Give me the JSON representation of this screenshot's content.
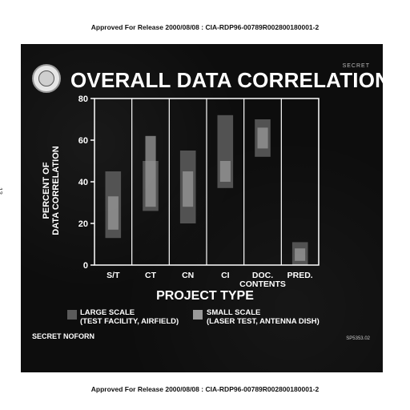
{
  "document": {
    "header": "Approved For Release 2000/08/08 : CIA-RDP96-00789R002800180001-2",
    "footer": "Approved For Release 2000/08/08 : CIA-RDP96-00789R002800180001-2",
    "margin_number": "13"
  },
  "slide": {
    "classification": "SECRET NOFORN",
    "corner_marking": "SECRET",
    "figure_code": "SP5353.02"
  },
  "legend": {
    "large_label": "LARGE SCALE\n(TEST FACILITY, AIRFIELD)",
    "small_label": "SMALL SCALE\n(LASER TEST, ANTENNA DISH)",
    "large_color": "#5a5a5a",
    "small_color": "#9a9a9a"
  },
  "colors": {
    "background": "#0d0d0d",
    "axis": "#ffffff",
    "large_scale": "#5a5a5a",
    "small_scale": "#9a9a9a"
  },
  "chart_data": {
    "type": "bar",
    "title": "OVERALL DATA CORRELATIONS",
    "xlabel": "PROJECT TYPE",
    "ylabel": "PERCENT OF\nDATA CORRELATION",
    "ylim": [
      0,
      80
    ],
    "yticks": [
      0,
      20,
      40,
      60,
      80
    ],
    "categories": [
      "S/T",
      "CT",
      "CN",
      "CI",
      "DOC.\nCONTENTS",
      "PRED."
    ],
    "series": [
      {
        "name": "LARGE SCALE (TEST FACILITY, AIRFIELD)",
        "style": "floating range",
        "ranges": [
          [
            13,
            45
          ],
          [
            26,
            50
          ],
          [
            20,
            55
          ],
          [
            37,
            72
          ],
          [
            52,
            70
          ],
          [
            0,
            11
          ]
        ]
      },
      {
        "name": "SMALL SCALE (LASER TEST, ANTENNA DISH)",
        "style": "floating range",
        "ranges": [
          [
            17,
            33
          ],
          [
            28,
            62
          ],
          [
            28,
            45
          ],
          [
            40,
            50
          ],
          [
            56,
            66
          ],
          [
            2,
            8
          ]
        ]
      }
    ],
    "grid": false,
    "legend_position": "bottom"
  }
}
